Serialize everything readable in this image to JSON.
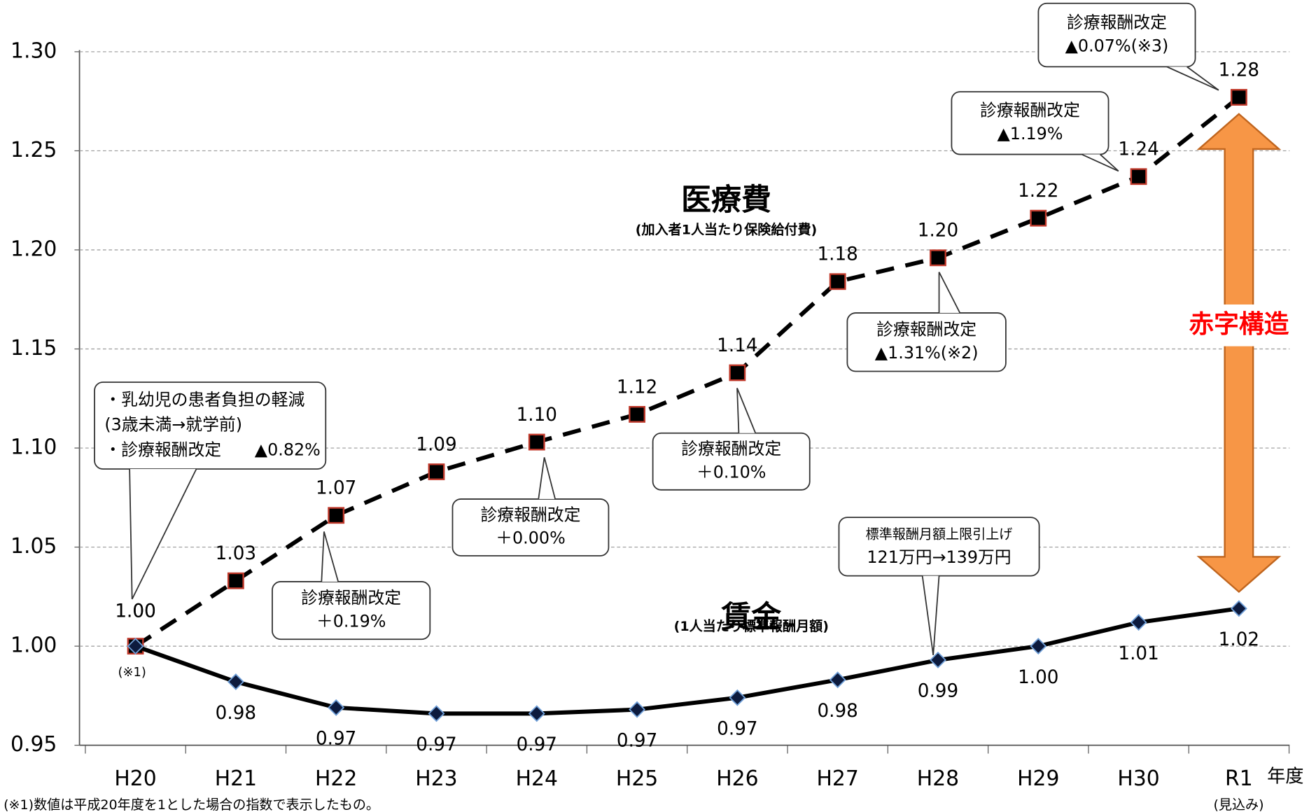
{
  "chart_data": {
    "type": "line",
    "categories": [
      "H20",
      "H21",
      "H22",
      "H23",
      "H24",
      "H25",
      "H26",
      "H27",
      "H28",
      "H29",
      "H30",
      "R1"
    ],
    "x_axis_unit": "年度",
    "forecast_note": "(見込み)",
    "base_note": "(※1)",
    "footnote": "(※1)数値は平成20年度を1とした場合の指数で表示したもの。",
    "ylim": [
      0.95,
      1.3
    ],
    "yticks": [
      0.95,
      {
        "value": 1.0,
        "label": "1.00"
      },
      1.05,
      {
        "value": 1.1,
        "label": "1.10"
      },
      1.15,
      {
        "value": 1.2,
        "label": "1.20"
      },
      1.25,
      {
        "value": 1.3,
        "label": "1.30"
      }
    ],
    "grid": true,
    "series": [
      {
        "name": "医療費",
        "note": "(加入者1人当たり保険給付費)",
        "color": "#000000",
        "marker": "square",
        "marker_fill": "#000000",
        "marker_stroke": "#c0392b",
        "dashed": true,
        "values": [
          1.0,
          1.033,
          1.066,
          1.088,
          1.103,
          1.117,
          1.138,
          1.184,
          1.196,
          1.216,
          1.237,
          1.277
        ],
        "value_labels": [
          "1.00",
          "1.03",
          "1.07",
          "1.09",
          "1.10",
          "1.12",
          "1.14",
          "1.18",
          "1.20",
          "1.22",
          "1.24",
          "1.28"
        ]
      },
      {
        "name": "賃金",
        "note": "(1人当たり標準報酬月額)",
        "color": "#000000",
        "marker": "diamond",
        "marker_fill": "#0d1b3e",
        "marker_stroke": "#6f9fd8",
        "dashed": false,
        "values": [
          1.0,
          0.982,
          0.969,
          0.966,
          0.966,
          0.968,
          0.974,
          0.983,
          0.993,
          1.0,
          1.012,
          1.019
        ],
        "value_labels": [
          "1.00",
          "0.98",
          "0.97",
          "0.97",
          "0.97",
          "0.97",
          "0.97",
          "0.98",
          "0.99",
          "1.00",
          "1.01",
          "1.02"
        ]
      }
    ],
    "gap_label": "赤字構造",
    "gap_color": "#f79646",
    "annotations": [
      {
        "lines": [
          "・乳幼児の患者負担の軽減",
          "(3歳未満→就学前)",
          "・診療報酬改定　　▲0.82%"
        ]
      },
      {
        "lines": [
          "診療報酬改定",
          "＋0.19%"
        ]
      },
      {
        "lines": [
          "診療報酬改定",
          "＋0.00%"
        ]
      },
      {
        "lines": [
          "診療報酬改定",
          "＋0.10%"
        ]
      },
      {
        "lines": [
          "診療報酬改定",
          "▲1.31%(※2)"
        ]
      },
      {
        "lines": [
          "標準報酬月額上限引上げ",
          "121万円→139万円"
        ]
      },
      {
        "lines": [
          "診療報酬改定",
          "▲1.19%"
        ]
      },
      {
        "lines": [
          "診療報酬改定",
          "▲0.07%(※3)"
        ]
      }
    ]
  }
}
